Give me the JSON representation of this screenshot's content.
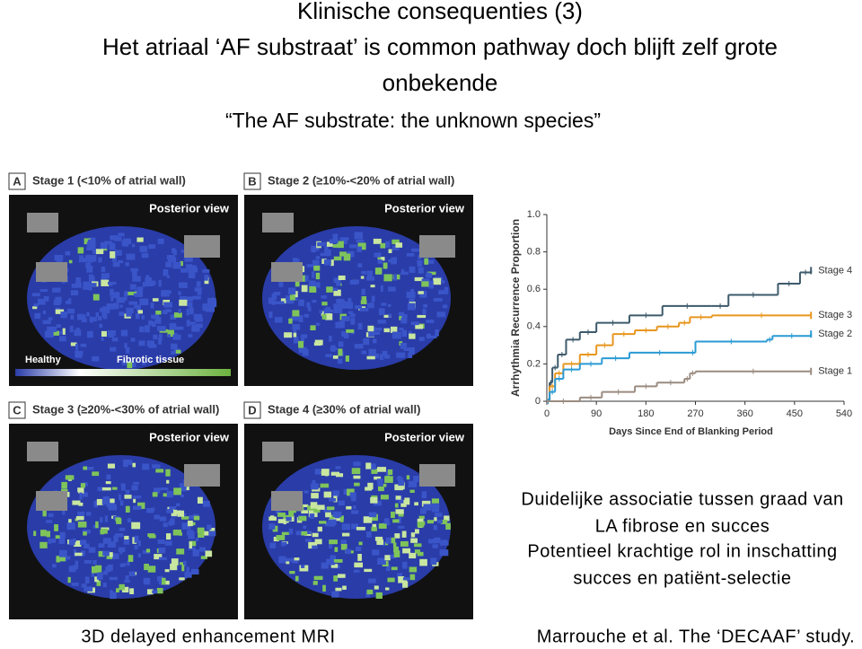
{
  "header": {
    "title": "Klinische consequenties (3)",
    "line2": "Het atriaal ‘AF substraat’ is common pathway doch blijft zelf grote",
    "line3": "onbekende",
    "subtitle": "“The AF substrate: the unknown species”"
  },
  "panels": [
    {
      "letter": "A",
      "label": "Stage 1 (<10% of atrial wall)",
      "view": "Posterior view"
    },
    {
      "letter": "B",
      "label": "Stage 2 (≥10%-<20% of atrial wall)",
      "view": "Posterior view"
    },
    {
      "letter": "C",
      "label": "Stage 3 (≥20%-<30% of atrial wall)",
      "view": "Posterior view"
    },
    {
      "letter": "D",
      "label": "Stage 4 (≥30% of atrial wall)",
      "view": "Posterior view"
    }
  ],
  "legend": {
    "healthy": "Healthy",
    "fibrotic": "Fibrotic tissue"
  },
  "chart_data": {
    "type": "step",
    "xlabel": "Days Since End of Blanking Period",
    "ylabel": "Arrhythmia Recurrence Proportion",
    "xlim": [
      0,
      540
    ],
    "xticks": [
      0,
      90,
      180,
      270,
      360,
      450,
      540
    ],
    "ylim": [
      0,
      1
    ],
    "yticks": [
      0,
      0.2,
      0.4,
      0.6,
      0.8,
      {
        "value": 1,
        "label": "1.0"
      }
    ],
    "series": [
      {
        "name": "Stage 4",
        "color": "#3d5a6b",
        "x": [
          0,
          5,
          10,
          20,
          35,
          60,
          90,
          150,
          210,
          300,
          330,
          420,
          460,
          480
        ],
        "values": [
          0,
          0.1,
          0.18,
          0.25,
          0.33,
          0.37,
          0.42,
          0.46,
          0.51,
          0.51,
          0.57,
          0.63,
          0.69,
          0.7
        ]
      },
      {
        "name": "Stage 3",
        "color": "#e8961e",
        "x": [
          0,
          5,
          15,
          30,
          60,
          90,
          120,
          160,
          200,
          240,
          260,
          300,
          480
        ],
        "values": [
          0,
          0.08,
          0.15,
          0.2,
          0.25,
          0.3,
          0.36,
          0.38,
          0.4,
          0.42,
          0.45,
          0.46,
          0.46
        ]
      },
      {
        "name": "Stage 2",
        "color": "#2a9ad4",
        "x": [
          0,
          5,
          15,
          30,
          60,
          100,
          150,
          260,
          270,
          400,
          410,
          480
        ],
        "values": [
          0,
          0.05,
          0.12,
          0.17,
          0.2,
          0.23,
          0.26,
          0.26,
          0.32,
          0.33,
          0.35,
          0.36
        ]
      },
      {
        "name": "Stage 1",
        "color": "#9a8b80",
        "x": [
          0,
          60,
          100,
          160,
          200,
          250,
          260,
          270,
          480
        ],
        "values": [
          0,
          0.02,
          0.05,
          0.08,
          0.1,
          0.12,
          0.15,
          0.16,
          0.16
        ]
      }
    ]
  },
  "notes": [
    "Duidelijke associatie tussen graad van",
    "LA fibrose en succes",
    "Potentieel krachtige rol in inschatting",
    "succes en patiënt-selectie"
  ],
  "captions": {
    "left": "3D delayed enhancement MRI",
    "right": "Marrouche et al. The ‘DECAAF’ study."
  }
}
